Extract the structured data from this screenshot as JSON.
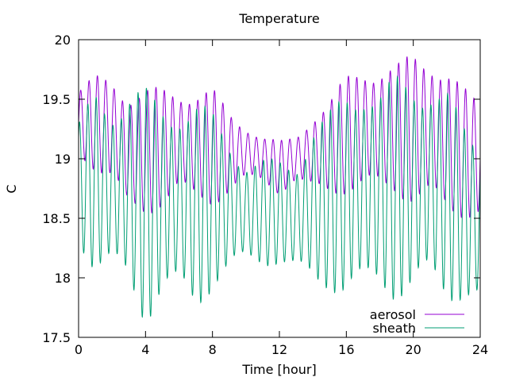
{
  "chart_data": {
    "type": "line",
    "title": "Temperature",
    "xlabel": "Time [hour]",
    "ylabel": "C",
    "xlim": [
      0,
      24
    ],
    "ylim": [
      17.5,
      20
    ],
    "xticks": [
      "0",
      "4",
      "8",
      "12",
      "16",
      "20",
      "24"
    ],
    "yticks": [
      "17.5",
      "18",
      "18.5",
      "19",
      "19.5",
      "20"
    ],
    "grid": false,
    "legend_position": "bottom-right",
    "oscillation_period_hours": 0.5,
    "series": [
      {
        "name": "aerosol",
        "color": "#9400d3",
        "x": [
          0,
          1,
          2,
          3,
          4,
          5,
          6,
          7,
          8,
          9,
          10,
          11,
          12,
          13,
          14,
          15,
          16,
          17,
          18,
          19,
          20,
          21,
          22,
          23,
          24
        ],
        "min": [
          19.0,
          18.9,
          18.8,
          18.5,
          18.5,
          18.6,
          18.7,
          18.6,
          18.6,
          18.7,
          18.8,
          18.8,
          18.7,
          18.8,
          18.7,
          18.7,
          18.7,
          18.7,
          18.7,
          18.7,
          18.6,
          18.6,
          18.5,
          18.5,
          18.5
        ],
        "max": [
          19.6,
          19.7,
          19.7,
          19.6,
          19.6,
          19.6,
          19.6,
          19.6,
          19.6,
          19.4,
          19.3,
          19.2,
          19.15,
          19.2,
          19.4,
          19.5,
          19.7,
          19.8,
          19.8,
          19.8,
          19.9,
          19.9,
          19.8,
          19.6,
          19.5
        ]
      },
      {
        "name": "sheath",
        "color": "#009e73",
        "x": [
          0,
          1,
          2,
          3,
          4,
          5,
          6,
          7,
          8,
          9,
          10,
          11,
          12,
          13,
          14,
          15,
          16,
          17,
          18,
          19,
          20,
          21,
          22,
          23,
          24
        ],
        "min": [
          18.3,
          18.0,
          18.0,
          17.9,
          17.6,
          17.8,
          17.8,
          17.7,
          17.9,
          18.0,
          18.1,
          18.1,
          18.1,
          18.0,
          17.9,
          17.9,
          17.8,
          17.8,
          17.9,
          17.8,
          17.8,
          17.9,
          17.8,
          17.8,
          17.7
        ],
        "max": [
          19.3,
          19.6,
          19.5,
          19.6,
          19.6,
          19.5,
          19.5,
          19.5,
          19.4,
          19.2,
          19.0,
          19.0,
          19.0,
          19.0,
          19.3,
          19.4,
          19.6,
          19.7,
          19.6,
          19.7,
          19.7,
          19.7,
          19.6,
          19.3,
          19.2
        ]
      }
    ]
  }
}
